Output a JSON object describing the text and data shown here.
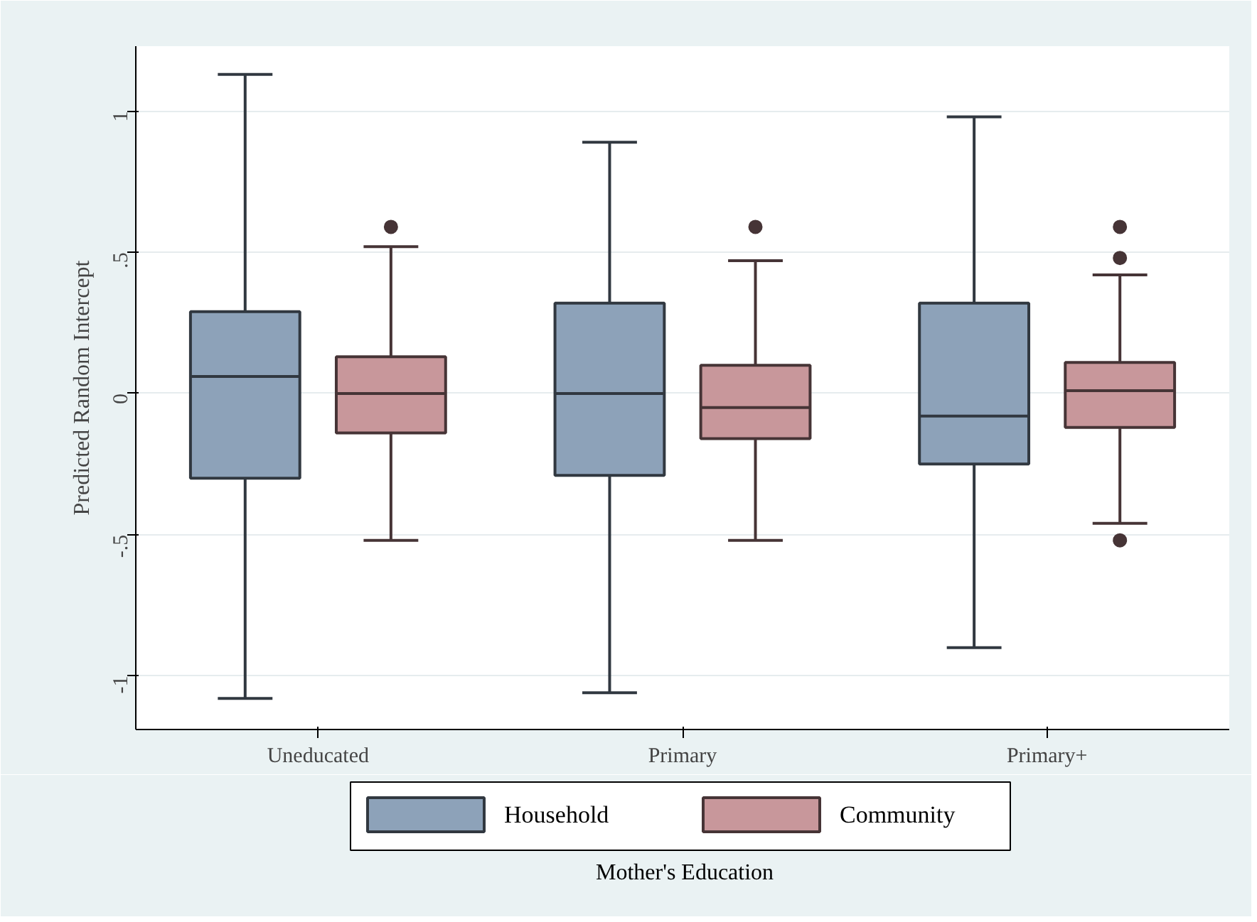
{
  "chart_data": {
    "type": "box",
    "xlabel": "Mother's Education",
    "ylabel": "Predicted Random Intercept",
    "categories": [
      "Uneducated",
      "Primary",
      "Primary+"
    ],
    "ylim": [
      -1.19,
      1.23
    ],
    "yticks": [
      {
        "value": -1,
        "label": "-1"
      },
      {
        "value": -0.5,
        "label": "-.5"
      },
      {
        "value": 0,
        "label": "0"
      },
      {
        "value": 0.5,
        "label": ".5"
      },
      {
        "value": 1,
        "label": "1"
      }
    ],
    "grid": "y",
    "legend": "bottom",
    "series": [
      {
        "name": "Household",
        "color": "#8da2b9",
        "boxes": [
          {
            "low": -1.08,
            "q1": -0.3,
            "median": 0.06,
            "q3": 0.29,
            "high": 1.13
          },
          {
            "low": -1.06,
            "q1": -0.29,
            "median": 0.0,
            "q3": 0.32,
            "high": 0.89
          },
          {
            "low": -0.9,
            "q1": -0.25,
            "median": -0.08,
            "q3": 0.32,
            "high": 0.98
          }
        ]
      },
      {
        "name": "Community",
        "color": "#c8979b",
        "boxes": [
          {
            "low": -0.52,
            "q1": -0.14,
            "median": 0.0,
            "q3": 0.13,
            "high": 0.52,
            "outliers": [
              0.59
            ]
          },
          {
            "low": -0.52,
            "q1": -0.16,
            "median": -0.05,
            "q3": 0.1,
            "high": 0.47,
            "outliers": [
              0.59
            ]
          },
          {
            "low": -0.46,
            "q1": -0.12,
            "median": 0.01,
            "q3": 0.11,
            "high": 0.42,
            "outliers": [
              0.59,
              0.48,
              -0.52
            ]
          }
        ]
      }
    ]
  }
}
